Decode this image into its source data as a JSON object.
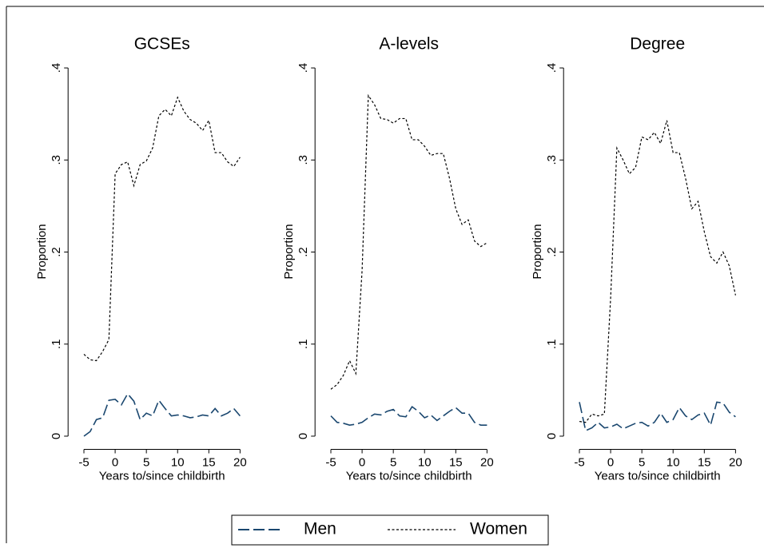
{
  "chart_data": [
    {
      "type": "line",
      "title": "GCSEs",
      "xlabel": "Years to/since childbirth",
      "ylabel": "Proportion",
      "x": [
        -5,
        -4,
        -3,
        -2,
        -1,
        0,
        1,
        2,
        3,
        4,
        5,
        6,
        7,
        8,
        9,
        10,
        11,
        12,
        13,
        14,
        15,
        16,
        17,
        18,
        19,
        20
      ],
      "series": [
        {
          "name": "Men",
          "color": "#1a476f",
          "dash": "long",
          "values": [
            0,
            0.005,
            0.018,
            0.02,
            0.039,
            0.04,
            0.034,
            0.046,
            0.038,
            0.018,
            0.025,
            0.022,
            0.039,
            0.03,
            0.022,
            0.023,
            0.022,
            0.02,
            0.021,
            0.023,
            0.022,
            0.03,
            0.022,
            0.025,
            0.03,
            0.022
          ]
        },
        {
          "name": "Women",
          "color": "#000000",
          "dash": "short",
          "values": [
            0.089,
            0.083,
            0.082,
            0.092,
            0.105,
            0.285,
            0.295,
            0.298,
            0.272,
            0.295,
            0.299,
            0.313,
            0.348,
            0.355,
            0.348,
            0.368,
            0.353,
            0.344,
            0.34,
            0.332,
            0.343,
            0.308,
            0.308,
            0.298,
            0.293,
            0.303
          ]
        }
      ],
      "xlim": [
        -6,
        21
      ],
      "xticks": [
        -5,
        0,
        5,
        10,
        15,
        20
      ],
      "ylim": [
        -0.01,
        0.42
      ],
      "yticks": [
        0,
        {
          "value": 0.1,
          "label": ".1"
        },
        {
          "value": 0.2,
          "label": ".2"
        },
        {
          "value": 0.3,
          "label": ".3"
        },
        {
          "value": 0.4,
          "label": ".4"
        }
      ]
    },
    {
      "type": "line",
      "title": "A-levels",
      "xlabel": "Years to/since childbirth",
      "ylabel": "Proportion",
      "x": [
        -5,
        -4,
        -3,
        -2,
        -1,
        0,
        1,
        2,
        3,
        4,
        5,
        6,
        7,
        8,
        9,
        10,
        11,
        12,
        13,
        14,
        15,
        16,
        17,
        18,
        19,
        20
      ],
      "series": [
        {
          "color": "#1a476f",
          "dash": "long",
          "values": [
            0.022,
            0.015,
            0.014,
            0.012,
            0.013,
            0.015,
            0.02,
            0.024,
            0.023,
            0.027,
            0.029,
            0.022,
            0.021,
            0.032,
            0.027,
            0.02,
            0.023,
            0.017,
            0.022,
            0.027,
            0.031,
            0.025,
            0.025,
            0.015,
            0.012,
            0.012
          ]
        },
        {
          "color": "#000000",
          "dash": "short",
          "values": [
            0.051,
            0.056,
            0.066,
            0.082,
            0.068,
            0.18,
            0.37,
            0.36,
            0.345,
            0.344,
            0.34,
            0.345,
            0.345,
            0.322,
            0.322,
            0.315,
            0.305,
            0.307,
            0.307,
            0.28,
            0.247,
            0.23,
            0.235,
            0.212,
            0.206,
            0.21
          ]
        }
      ],
      "xlim": [
        -6,
        21
      ],
      "xticks": [
        -5,
        0,
        5,
        10,
        15,
        20
      ],
      "ylim": [
        -0.01,
        0.42
      ],
      "yticks": [
        0,
        {
          "value": 0.1,
          "label": ".1"
        },
        {
          "value": 0.2,
          "label": ".2"
        },
        {
          "value": 0.3,
          "label": ".3"
        },
        {
          "value": 0.4,
          "label": ".4"
        }
      ]
    },
    {
      "type": "line",
      "title": "Degree",
      "xlabel": "Years to/since childbirth",
      "ylabel": "Proportion",
      "x": [
        -5,
        -4,
        -3,
        -2,
        -1,
        0,
        1,
        2,
        3,
        4,
        5,
        6,
        7,
        8,
        9,
        10,
        11,
        12,
        13,
        14,
        15,
        16,
        17,
        18,
        19,
        20
      ],
      "series": [
        {
          "color": "#1a476f",
          "dash": "long",
          "values": [
            0.037,
            0.006,
            0.009,
            0.015,
            0.009,
            0.01,
            0.013,
            0.008,
            0.011,
            0.014,
            0.015,
            0.011,
            0.015,
            0.025,
            0.015,
            0.018,
            0.031,
            0.022,
            0.018,
            0.023,
            0.025,
            0.012,
            0.037,
            0.036,
            0.026,
            0.021
          ]
        },
        {
          "color": "#000000",
          "dash": "short",
          "values": [
            0.016,
            0.015,
            0.024,
            0.022,
            0.024,
            0.15,
            0.313,
            0.3,
            0.285,
            0.292,
            0.325,
            0.322,
            0.33,
            0.318,
            0.343,
            0.308,
            0.308,
            0.28,
            0.247,
            0.255,
            0.222,
            0.195,
            0.188,
            0.2,
            0.185,
            0.153
          ]
        }
      ],
      "xlim": [
        -6,
        21
      ],
      "xticks": [
        -5,
        0,
        5,
        10,
        15,
        20
      ],
      "ylim": [
        -0.01,
        0.42
      ],
      "yticks": [
        0,
        {
          "value": 0.1,
          "label": ".1"
        },
        {
          "value": 0.2,
          "label": ".2"
        },
        {
          "value": 0.3,
          "label": ".3"
        },
        {
          "value": 0.4,
          "label": ".4"
        }
      ]
    }
  ]
}
